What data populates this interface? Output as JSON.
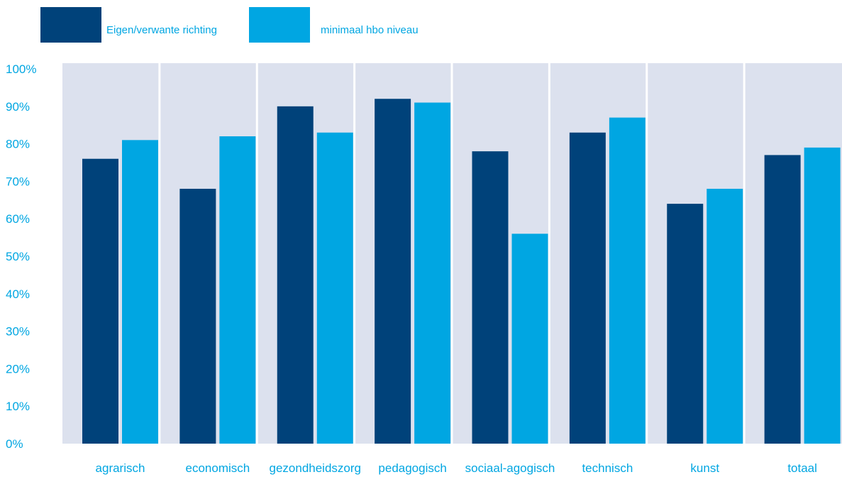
{
  "chart_data": {
    "type": "bar",
    "title": "",
    "xlabel": "",
    "ylabel": "",
    "ylim": [
      0,
      100
    ],
    "yticks": [
      0,
      10,
      20,
      30,
      40,
      50,
      60,
      70,
      80,
      90,
      100
    ],
    "ytick_suffix": "%",
    "grid": false,
    "legend_position": "top-left",
    "categories": [
      "agrarisch",
      "economisch",
      "gezondheidszorg",
      "pedagogisch",
      "sociaal-agogisch",
      "technisch",
      "kunst",
      "totaal"
    ],
    "series": [
      {
        "name": "Eigen/verwante richting",
        "color": "#00427A",
        "values": [
          76,
          68,
          90,
          92,
          78,
          83,
          64,
          77
        ]
      },
      {
        "name": "minimaal hbo niveau",
        "color": "#00A6E2",
        "values": [
          81,
          82,
          83,
          91,
          56,
          87,
          68,
          79
        ]
      }
    ],
    "colors": {
      "plot_background": "#DCE1EE",
      "text": "#00A6E2",
      "separator": "#FFFFFF"
    }
  }
}
